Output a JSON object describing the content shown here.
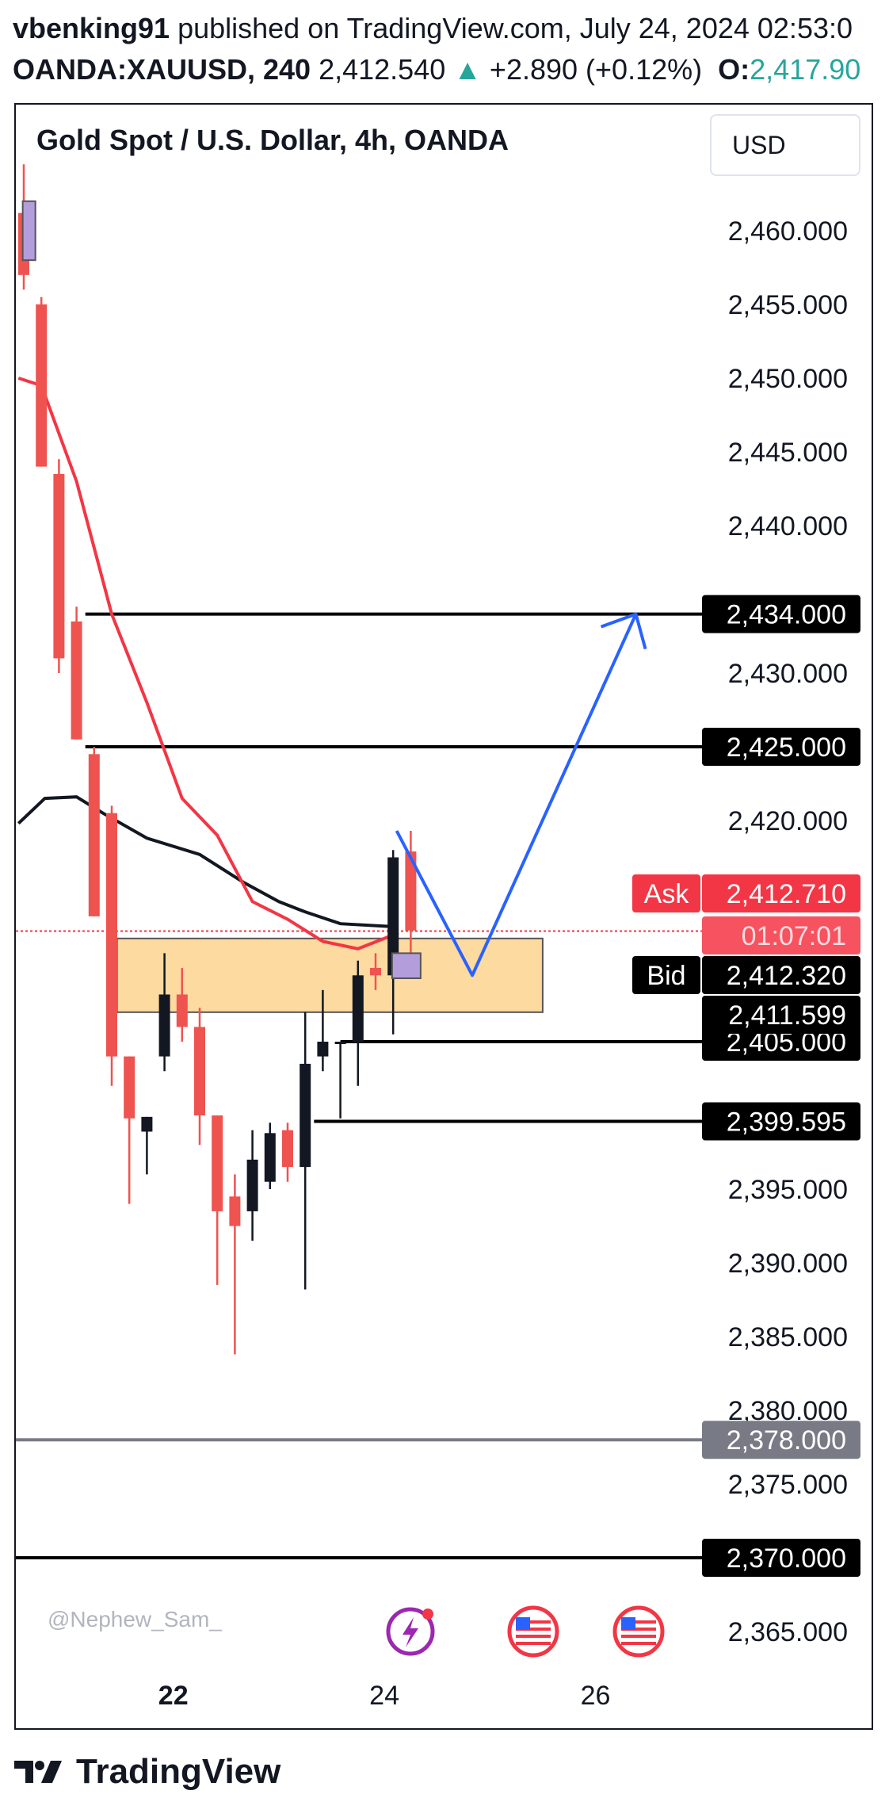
{
  "header": {
    "line1_author": "vbenking91",
    "line1_rest": " published on TradingView.com, July 24, 2024 02:53:0",
    "symbol": "OANDA:XAUUSD, 240",
    "price": "2,412.540",
    "arrow": "▲",
    "change": "+2.890 (+0.12%)",
    "open_label": "O:",
    "open_value": "2,417.90"
  },
  "chart_title": "Gold Spot / U.S. Dollar, 4h, OANDA",
  "currency_button": "USD",
  "watermark": "@Nephew_Sam_",
  "footer_logo": "TradingView",
  "chart_data": {
    "type": "candlestick",
    "title": "Gold Spot / U.S. Dollar, 4h, OANDA",
    "ylim": [
      2362,
      2466
    ],
    "x_tick_labels": [
      {
        "label": "22",
        "index": 8.5
      },
      {
        "label": "24",
        "index": 20.5
      },
      {
        "label": "26",
        "index": 32.5
      }
    ],
    "y_ticks": [
      {
        "value": 2460,
        "label": "2,460.000"
      },
      {
        "value": 2455,
        "label": "2,455.000"
      },
      {
        "value": 2450,
        "label": "2,450.000"
      },
      {
        "value": 2445,
        "label": "2,445.000"
      },
      {
        "value": 2440,
        "label": "2,440.000"
      },
      {
        "value": 2430,
        "label": "2,430.000"
      },
      {
        "value": 2420,
        "label": "2,420.000"
      },
      {
        "value": 2395,
        "label": "2,395.000"
      },
      {
        "value": 2390,
        "label": "2,390.000"
      },
      {
        "value": 2385,
        "label": "2,385.000"
      },
      {
        "value": 2380,
        "label": "2,380.000"
      },
      {
        "value": 2375,
        "label": "2,375.000"
      },
      {
        "value": 2365,
        "label": "2,365.000"
      }
    ],
    "candles": [
      {
        "o": 2461.2,
        "h": 2464.5,
        "l": 2456.0,
        "c": 2457.0
      },
      {
        "o": 2455.0,
        "h": 2455.5,
        "l": 2444.0,
        "c": 2444.0
      },
      {
        "o": 2443.5,
        "h": 2444.5,
        "l": 2430.0,
        "c": 2431.0
      },
      {
        "o": 2433.5,
        "h": 2434.5,
        "l": 2425.5,
        "c": 2425.5
      },
      {
        "o": 2424.5,
        "h": 2425.0,
        "l": 2413.5,
        "c": 2413.5
      },
      {
        "o": 2420.5,
        "h": 2421.0,
        "l": 2402.0,
        "c": 2404.0
      },
      {
        "o": 2404.0,
        "h": 2404.0,
        "l": 2394.0,
        "c": 2399.8
      },
      {
        "o": 2398.9,
        "h": 2399.9,
        "l": 2396.0,
        "c": 2399.9
      },
      {
        "o": 2404.0,
        "h": 2411.0,
        "l": 2403.0,
        "c": 2408.2
      },
      {
        "o": 2408.2,
        "h": 2410.0,
        "l": 2405.0,
        "c": 2406.0
      },
      {
        "o": 2406.0,
        "h": 2407.3,
        "l": 2398.0,
        "c": 2400.0
      },
      {
        "o": 2400.0,
        "h": 2400.0,
        "l": 2388.5,
        "c": 2393.5
      },
      {
        "o": 2394.5,
        "h": 2396.0,
        "l": 2383.8,
        "c": 2392.5
      },
      {
        "o": 2393.5,
        "h": 2399.0,
        "l": 2391.5,
        "c": 2397.0
      },
      {
        "o": 2395.5,
        "h": 2399.5,
        "l": 2395.0,
        "c": 2398.8
      },
      {
        "o": 2399.0,
        "h": 2399.5,
        "l": 2395.5,
        "c": 2396.5
      },
      {
        "o": 2396.5,
        "h": 2407.0,
        "l": 2388.2,
        "c": 2403.5
      },
      {
        "o": 2404.0,
        "h": 2408.5,
        "l": 2403.0,
        "c": 2405.0
      },
      {
        "o": 2405.0,
        "h": 2405.0,
        "l": 2399.8,
        "c": 2405.0
      },
      {
        "o": 2405.0,
        "h": 2410.5,
        "l": 2402.0,
        "c": 2409.5
      },
      {
        "o": 2410.0,
        "h": 2411.0,
        "l": 2408.5,
        "c": 2409.5
      },
      {
        "o": 2409.5,
        "h": 2418.0,
        "l": 2405.5,
        "c": 2417.5
      },
      {
        "o": 2417.9,
        "h": 2419.3,
        "l": 2411.0,
        "c": 2412.54
      }
    ],
    "moving_averages": [
      {
        "color": "#131722",
        "points": [
          [
            -0.3,
            2419.8
          ],
          [
            1.2,
            2421.5
          ],
          [
            3.0,
            2421.6
          ],
          [
            4.5,
            2420.5
          ],
          [
            7.0,
            2418.8
          ],
          [
            10.0,
            2417.7
          ],
          [
            12.5,
            2415.8
          ],
          [
            14.5,
            2414.5
          ],
          [
            16.0,
            2413.8
          ],
          [
            18.0,
            2413.0
          ],
          [
            21.0,
            2412.8
          ]
        ]
      },
      {
        "color": "#f23645",
        "points": [
          [
            -0.3,
            2450.0
          ],
          [
            1.0,
            2449.5
          ],
          [
            3.0,
            2443.0
          ],
          [
            5.0,
            2434.0
          ],
          [
            7.0,
            2428.0
          ],
          [
            9.0,
            2421.5
          ],
          [
            11.0,
            2419.0
          ],
          [
            13.0,
            2414.5
          ],
          [
            15.0,
            2413.3
          ],
          [
            17.0,
            2411.8
          ],
          [
            19.0,
            2411.3
          ],
          [
            20.5,
            2412.0
          ],
          [
            21.3,
            2412.4
          ]
        ]
      }
    ],
    "horizontal_levels": [
      {
        "value": 2434.0,
        "label": "2,434.000",
        "start_index": 3.5,
        "color": "#000000",
        "label_bg": "#000000"
      },
      {
        "value": 2425.0,
        "label": "2,425.000",
        "start_index": 3.5,
        "color": "#000000",
        "label_bg": "#000000"
      },
      {
        "value": 2405.0,
        "label": "2,405.000",
        "start_index": 18.0,
        "color": "#000000",
        "label_bg": "#000000"
      },
      {
        "value": 2399.595,
        "label": "2,399.595",
        "start_index": 16.5,
        "color": "#000000",
        "label_bg": "#000000"
      },
      {
        "value": 2378.0,
        "label": "2,378.000",
        "start_index": -1,
        "color": "#787b86",
        "label_bg": "#787b86"
      },
      {
        "value": 2370.0,
        "label": "2,370.000",
        "start_index": -1,
        "color": "#000000",
        "label_bg": "#000000"
      }
    ],
    "price_labels": [
      {
        "value": 2412.71,
        "label": "2,412.710",
        "tag": "Ask",
        "bg": "#f23645",
        "color": "#ffffff"
      },
      {
        "value": 2412.71,
        "label": "01:07:01",
        "tag": "",
        "bg": "#f7525f",
        "color": "#fddde0",
        "offset": 1
      },
      {
        "value": 2412.32,
        "label": "2,412.320",
        "tag": "Bid",
        "bg": "#000000",
        "color": "#ffffff"
      },
      {
        "value": 2411.599,
        "label": "2,411.599",
        "tag": "",
        "bg": "#000000",
        "color": "#ffffff"
      }
    ],
    "zone": {
      "from_index": 5.3,
      "to_index": 29.5,
      "high": 2412.0,
      "low": 2407.0,
      "fill": "#fddaa0",
      "stroke": "#555555"
    },
    "markers": [
      {
        "index": 0.3,
        "high": 2462.0,
        "low": 2458.0,
        "fill": "#b39ddb"
      },
      {
        "index": 21.3,
        "high": 2411.0,
        "low": 2409.3,
        "fill": "#b39ddb"
      }
    ],
    "dotted_line_value": 2412.5,
    "projection": {
      "color": "#2962ff",
      "points": [
        [
          21.2,
          2419.3
        ],
        [
          25.5,
          2409.5
        ],
        [
          34.8,
          2434.0
        ]
      ]
    },
    "colors": {
      "up": "#131722",
      "down": "#ef5350"
    }
  }
}
